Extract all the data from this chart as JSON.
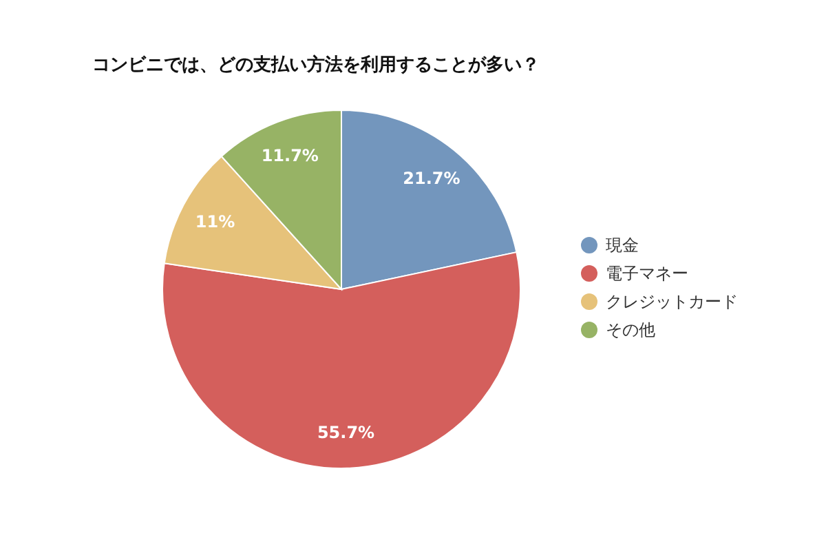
{
  "chart_data": {
    "type": "pie",
    "title": "コンビニでは、どの支払い方法を利用することが多い？",
    "categories": [
      "現金",
      "電子マネー",
      "クレジットカード",
      "その他"
    ],
    "values": [
      21.7,
      55.7,
      11,
      11.7
    ],
    "colors": [
      "#7396bd",
      "#d45f5c",
      "#e6c27a",
      "#97b365"
    ],
    "value_labels": [
      "21.7%",
      "55.7%",
      "11%",
      "11.7%"
    ],
    "legend": "right"
  }
}
